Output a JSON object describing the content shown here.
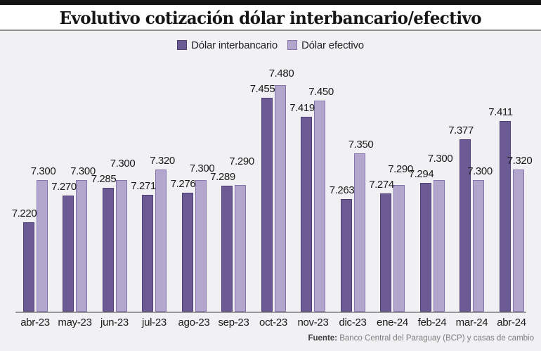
{
  "header": {
    "title": "Evolutivo cotización dólar interbancario/efectivo"
  },
  "legend": {
    "items": [
      {
        "label": "Dólar interbancario",
        "color": "#6b5a94",
        "border_color": "#4e3e74"
      },
      {
        "label": "Dólar efectivo",
        "color": "#b3a6cd",
        "border_color": "#8574ad"
      }
    ]
  },
  "chart_data": {
    "type": "bar",
    "title": "Evolutivo cotización dólar interbancario/efectivo",
    "categories": [
      "abr-23",
      "may-23",
      "jun-23",
      "jul-23",
      "ago-23",
      "sep-23",
      "oct-23",
      "nov-23",
      "dic-23",
      "ene-24",
      "feb-24",
      "mar-24",
      "abr-24"
    ],
    "series": [
      {
        "name": "Dólar interbancario",
        "color": "#6b5a94",
        "border_color": "#4e3e74",
        "values": [
          7.22,
          7.27,
          7.285,
          7.271,
          7.276,
          7.289,
          7.455,
          7.419,
          7.263,
          7.274,
          7.294,
          7.377,
          7.411
        ]
      },
      {
        "name": "Dólar efectivo",
        "color": "#b3a6cd",
        "border_color": "#8574ad",
        "values": [
          7.3,
          7.3,
          7.3,
          7.32,
          7.3,
          7.29,
          7.48,
          7.45,
          7.35,
          7.29,
          7.3,
          7.3,
          7.32
        ]
      }
    ],
    "ylim": [
      7.05,
      7.55
    ],
    "grid": false,
    "legend_position": "top",
    "value_labels": true,
    "value_label_decimals": 3
  },
  "footer": {
    "source_prefix": "Fuente:",
    "source_text": "Banco Central del Paraguay (BCP) y casas de cambio"
  }
}
